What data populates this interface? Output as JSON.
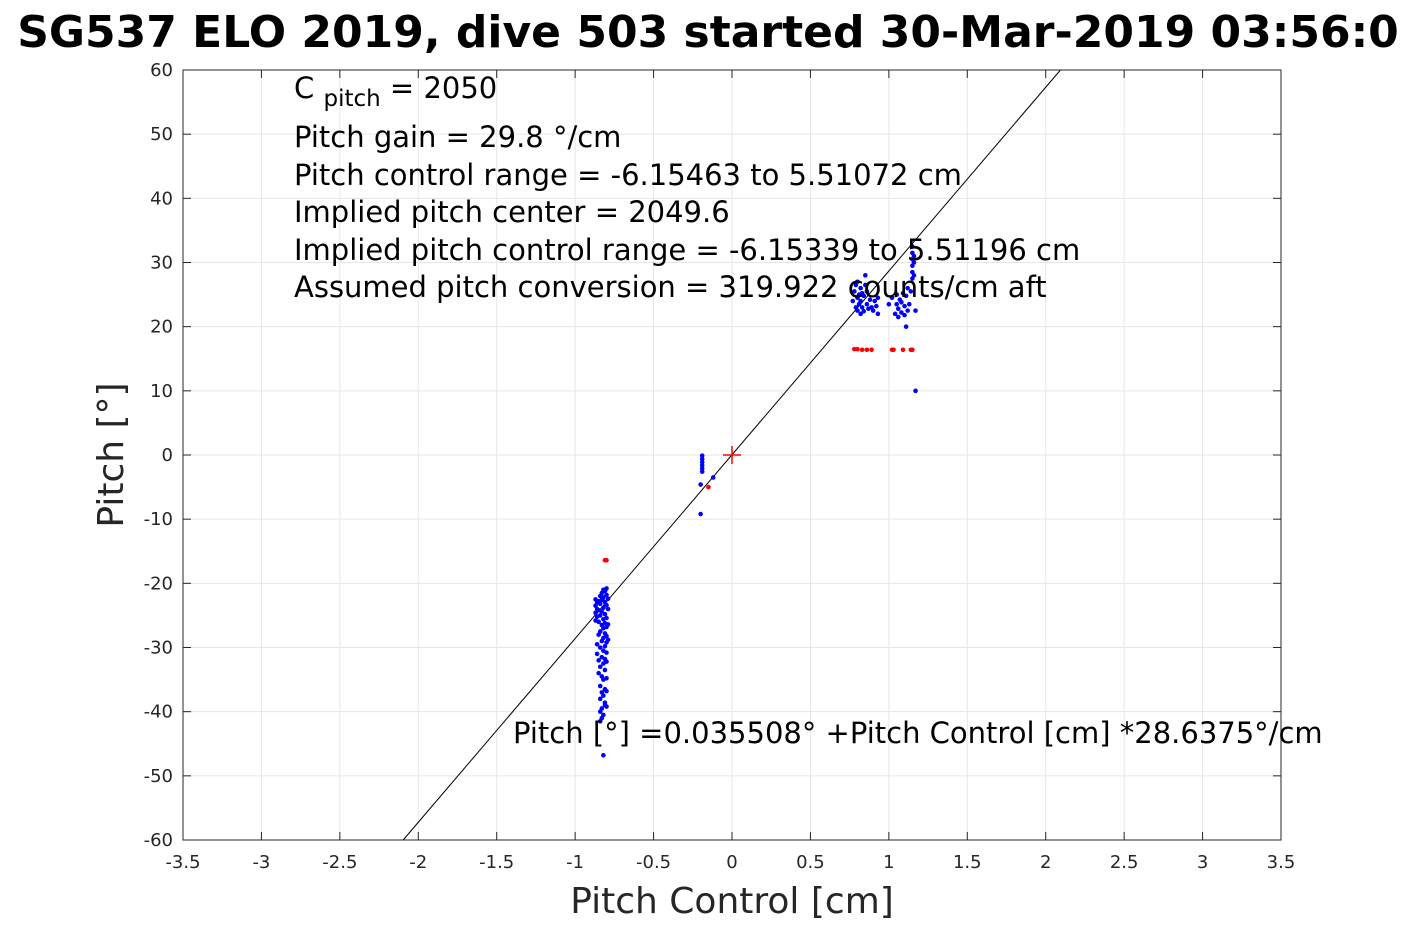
{
  "chart_data": {
    "type": "scatter",
    "title": "SG537 ELO 2019, dive 503 started 30-Mar-2019 03:56:0",
    "xlabel": "Pitch Control [cm]",
    "ylabel": "Pitch [°]",
    "xlim": [
      -3.5,
      3.5
    ],
    "ylim": [
      -60,
      60
    ],
    "grid": true,
    "xticks": [
      -3.5,
      -3,
      -2.5,
      -2,
      -1.5,
      -1,
      -0.5,
      0,
      0.5,
      1,
      1.5,
      2,
      2.5,
      3,
      3.5
    ],
    "xtick_labels": [
      "-3.5",
      "-3",
      "-2.5",
      "-2",
      "-1.5",
      "-1",
      "-0.5",
      "0",
      "0.5",
      "1",
      "1.5",
      "2",
      "2.5",
      "3",
      "3.5"
    ],
    "yticks": [
      60,
      50,
      40,
      30,
      20,
      10,
      0,
      -10,
      -20,
      -30,
      -40,
      -50,
      -60
    ],
    "ytick_labels": [
      "60",
      "50",
      "40",
      "30",
      "20",
      "10",
      "0",
      "-10",
      "-20",
      "-30",
      "-40",
      "-50",
      "-60"
    ],
    "annotations": {
      "cpitch_base": "C",
      "cpitch_sub": "pitch",
      "cpitch_value": " = 2050",
      "pitch_gain": "Pitch gain = 29.8 °/cm",
      "pitch_control_range": "Pitch control range = -6.15463 to 5.51072 cm",
      "implied_center": "Implied pitch center = 2049.6",
      "implied_range": "Implied pitch control range = -6.15339 to 5.51196 cm",
      "assumed_conversion": "Assumed pitch conversion = 319.922 counts/cm aft",
      "fit_equation": "Pitch [°] =0.035508° +Pitch Control [cm] *28.6375°/cm"
    },
    "fit_line": {
      "intercept": 0.035508,
      "slope": 28.6375,
      "color": "#000000"
    },
    "center_marker": {
      "x": 0,
      "y": 0,
      "color": "#ff0000"
    },
    "colors": {
      "included": "#0000ff",
      "excluded": "#ff0000"
    },
    "series": [
      {
        "color": "#0000ff",
        "points": [
          [
            -0.87,
            -22.5
          ],
          [
            -0.87,
            -23.5
          ],
          [
            -0.87,
            -24.6
          ],
          [
            -0.87,
            -25.8
          ],
          [
            -0.86,
            -23.0
          ],
          [
            -0.86,
            -24.0
          ],
          [
            -0.86,
            -25.2
          ],
          [
            -0.86,
            -29.5
          ],
          [
            -0.86,
            -31.0
          ],
          [
            -0.85,
            -22.8
          ],
          [
            -0.85,
            -24.2
          ],
          [
            -0.85,
            -26.0
          ],
          [
            -0.85,
            -28.0
          ],
          [
            -0.85,
            -32.0
          ],
          [
            -0.85,
            -34.0
          ],
          [
            -0.84,
            -22.0
          ],
          [
            -0.84,
            -23.2
          ],
          [
            -0.84,
            -25.0
          ],
          [
            -0.84,
            -27.5
          ],
          [
            -0.84,
            -30.0
          ],
          [
            -0.84,
            -33.0
          ],
          [
            -0.84,
            -36.0
          ],
          [
            -0.84,
            -38.0
          ],
          [
            -0.84,
            -40.0
          ],
          [
            -0.84,
            -41.5
          ],
          [
            -0.83,
            -21.5
          ],
          [
            -0.83,
            -22.6
          ],
          [
            -0.83,
            -24.4
          ],
          [
            -0.83,
            -26.5
          ],
          [
            -0.83,
            -29.0
          ],
          [
            -0.83,
            -31.5
          ],
          [
            -0.83,
            -34.5
          ],
          [
            -0.83,
            -37.0
          ],
          [
            -0.83,
            -39.5
          ],
          [
            -0.83,
            -41.0
          ],
          [
            -0.82,
            -21.0
          ],
          [
            -0.82,
            -22.2
          ],
          [
            -0.82,
            -23.8
          ],
          [
            -0.82,
            -25.6
          ],
          [
            -0.82,
            -27.0
          ],
          [
            -0.82,
            -28.5
          ],
          [
            -0.82,
            -30.5
          ],
          [
            -0.82,
            -32.5
          ],
          [
            -0.82,
            -35.0
          ],
          [
            -0.82,
            -37.5
          ],
          [
            -0.82,
            -40.5
          ],
          [
            -0.82,
            -46.8
          ],
          [
            -0.81,
            -21.2
          ],
          [
            -0.81,
            -22.9
          ],
          [
            -0.81,
            -24.8
          ],
          [
            -0.81,
            -26.2
          ],
          [
            -0.81,
            -27.8
          ],
          [
            -0.81,
            -29.8
          ],
          [
            -0.81,
            -31.8
          ],
          [
            -0.81,
            -33.5
          ],
          [
            -0.81,
            -36.5
          ],
          [
            -0.81,
            -38.6
          ],
          [
            -0.81,
            -39.0
          ],
          [
            -0.8,
            -20.8
          ],
          [
            -0.8,
            -21.8
          ],
          [
            -0.8,
            -23.4
          ],
          [
            -0.8,
            -25.4
          ],
          [
            -0.8,
            -26.8
          ],
          [
            -0.8,
            -28.2
          ],
          [
            -0.8,
            -29.2
          ],
          [
            -0.8,
            -30.8
          ],
          [
            -0.8,
            -32.2
          ],
          [
            -0.8,
            -34.8
          ],
          [
            -0.8,
            -36.8
          ],
          [
            -0.8,
            -39.2
          ],
          [
            -0.79,
            -22.4
          ],
          [
            -0.79,
            -24.0
          ],
          [
            -0.79,
            -26.4
          ],
          [
            -0.79,
            -28.8
          ],
          [
            -0.19,
            -0.1
          ],
          [
            -0.19,
            -0.6
          ],
          [
            -0.19,
            -1.1
          ],
          [
            -0.19,
            -1.6
          ],
          [
            -0.19,
            -2.1
          ],
          [
            -0.19,
            -2.6
          ],
          [
            -0.2,
            -4.6
          ],
          [
            -0.2,
            -9.2
          ],
          [
            -0.12,
            -3.5
          ],
          [
            0.77,
            24.0
          ],
          [
            0.78,
            25.5
          ],
          [
            0.79,
            23.0
          ],
          [
            0.79,
            26.5
          ],
          [
            0.8,
            22.5
          ],
          [
            0.8,
            24.5
          ],
          [
            0.8,
            27.0
          ],
          [
            0.81,
            23.5
          ],
          [
            0.81,
            25.0
          ],
          [
            0.82,
            22.0
          ],
          [
            0.82,
            24.0
          ],
          [
            0.82,
            26.0
          ],
          [
            0.83,
            23.0
          ],
          [
            0.83,
            25.2
          ],
          [
            0.84,
            22.4
          ],
          [
            0.84,
            24.8
          ],
          [
            0.85,
            26.5
          ],
          [
            0.85,
            28.0
          ],
          [
            0.86,
            23.5
          ],
          [
            0.86,
            25.5
          ],
          [
            0.87,
            22.8
          ],
          [
            0.88,
            24.2
          ],
          [
            0.89,
            23.0
          ],
          [
            0.9,
            22.5
          ],
          [
            0.91,
            24.0
          ],
          [
            0.92,
            23.2
          ],
          [
            0.93,
            22.0
          ],
          [
            0.93,
            24.5
          ],
          [
            1.0,
            23.5
          ],
          [
            1.02,
            24.5
          ],
          [
            1.04,
            22.0
          ],
          [
            1.05,
            23.5
          ],
          [
            1.05,
            25.0
          ],
          [
            1.06,
            21.5
          ],
          [
            1.06,
            22.8
          ],
          [
            1.07,
            24.2
          ],
          [
            1.08,
            22.2
          ],
          [
            1.08,
            23.8
          ],
          [
            1.09,
            25.2
          ],
          [
            1.1,
            21.8
          ],
          [
            1.1,
            23.2
          ],
          [
            1.11,
            20.0
          ],
          [
            1.11,
            24.8
          ],
          [
            1.12,
            22.5
          ],
          [
            1.12,
            26.0
          ],
          [
            1.13,
            23.5
          ],
          [
            1.14,
            25.5
          ],
          [
            1.15,
            27.5
          ],
          [
            1.15,
            28.5
          ],
          [
            1.15,
            29.5
          ],
          [
            1.15,
            30.5
          ],
          [
            1.15,
            31.5
          ],
          [
            1.15,
            32.5
          ],
          [
            1.16,
            28.0
          ],
          [
            1.16,
            30.0
          ],
          [
            1.16,
            31.0
          ],
          [
            1.17,
            22.5
          ],
          [
            1.17,
            10.0
          ]
        ]
      },
      {
        "color": "#ff0000",
        "points": [
          [
            -0.81,
            -16.4
          ],
          [
            -0.8,
            -16.4
          ],
          [
            -0.15,
            -5.0
          ],
          [
            0.78,
            16.5
          ],
          [
            0.8,
            16.5
          ],
          [
            0.83,
            16.4
          ],
          [
            0.86,
            16.4
          ],
          [
            0.89,
            16.4
          ],
          [
            1.02,
            16.4
          ],
          [
            1.03,
            16.4
          ],
          [
            1.09,
            16.4
          ],
          [
            1.14,
            16.4
          ],
          [
            1.15,
            16.4
          ]
        ]
      }
    ]
  }
}
